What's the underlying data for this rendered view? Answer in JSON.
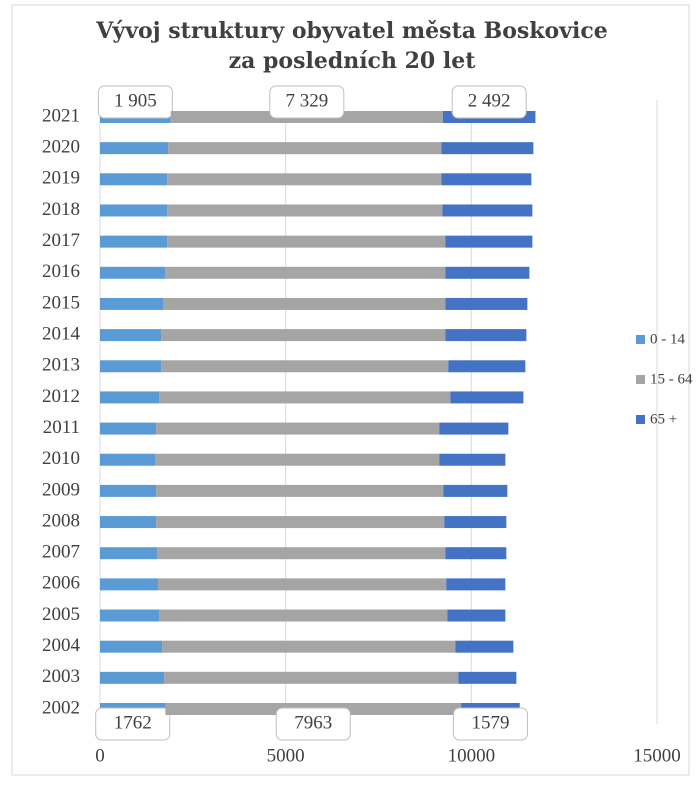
{
  "chart_data": {
    "type": "stacked_barh",
    "title": [
      "Vývoj struktury obyvatel města Boskovice",
      "za posledních 20 let"
    ],
    "categories": [
      "2002",
      "2003",
      "2004",
      "2005",
      "2006",
      "2007",
      "2008",
      "2009",
      "2010",
      "2011",
      "2012",
      "2013",
      "2014",
      "2015",
      "2016",
      "2017",
      "2018",
      "2019",
      "2020",
      "2021"
    ],
    "series": [
      {
        "name": "0 - 14",
        "color": "#5b9bd5",
        "values": [
          1762,
          1725,
          1671,
          1590,
          1563,
          1536,
          1509,
          1509,
          1482,
          1509,
          1590,
          1644,
          1644,
          1698,
          1752,
          1806,
          1806,
          1806,
          1833,
          1905
        ],
        "value_labels": [
          "1762",
          null,
          null,
          null,
          null,
          null,
          null,
          null,
          null,
          null,
          null,
          null,
          null,
          null,
          null,
          null,
          null,
          null,
          null,
          "1 905"
        ]
      },
      {
        "name": "15 - 64",
        "color": "#a5a5a5",
        "values": [
          7963,
          7925,
          7898,
          7763,
          7763,
          7763,
          7763,
          7736,
          7655,
          7628,
          7844,
          7736,
          7655,
          7601,
          7547,
          7493,
          7412,
          7385,
          7358,
          7329
        ],
        "value_labels": [
          "7963",
          null,
          null,
          null,
          null,
          null,
          null,
          null,
          null,
          null,
          null,
          null,
          null,
          null,
          null,
          null,
          null,
          null,
          null,
          "7 329"
        ]
      },
      {
        "name": "65 +",
        "color": "#4472c4",
        "values": [
          1579,
          1563,
          1563,
          1563,
          1590,
          1644,
          1671,
          1725,
          1779,
          1860,
          1968,
          2075,
          2183,
          2210,
          2264,
          2345,
          2426,
          2426,
          2480,
          2492
        ],
        "value_labels": [
          "1579",
          null,
          null,
          null,
          null,
          null,
          null,
          null,
          null,
          null,
          null,
          null,
          null,
          null,
          null,
          null,
          null,
          null,
          null,
          "2 492"
        ]
      }
    ],
    "xlim": [
      0,
      15000
    ],
    "xticks": [
      0,
      5000,
      10000,
      15000
    ],
    "grid": true,
    "legend": "right"
  }
}
